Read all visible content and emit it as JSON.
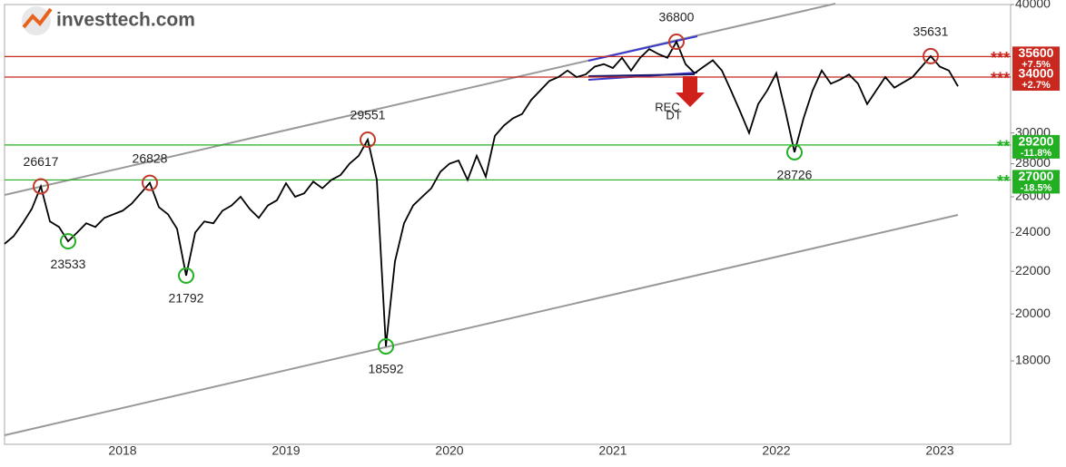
{
  "logo": "investtech.com",
  "chart_data": {
    "type": "line",
    "categories": [
      null,
      null,
      null,
      null,
      null,
      null,
      null,
      null,
      null,
      null,
      null,
      null,
      null,
      "2018",
      null,
      null,
      null,
      null,
      null,
      null,
      null,
      null,
      null,
      null,
      null,
      null,
      null,
      null,
      null,
      null,
      null,
      "2019",
      null,
      null,
      null,
      null,
      null,
      null,
      null,
      null,
      null,
      null,
      null,
      null,
      null,
      null,
      null,
      null,
      null,
      "2020",
      null,
      null,
      null,
      null,
      null,
      null,
      null,
      null,
      null,
      null,
      null,
      null,
      null,
      null,
      null,
      null,
      null,
      "2021",
      null,
      null,
      null,
      null,
      null,
      null,
      null,
      null,
      null,
      null,
      null,
      null,
      null,
      null,
      null,
      null,
      null,
      "2022",
      null,
      null,
      null,
      null,
      null,
      null,
      null,
      null,
      null,
      null,
      null,
      null,
      null,
      null,
      null,
      null,
      null,
      "2023",
      null,
      null
    ],
    "series": [
      {
        "color": "#000000",
        "values": [
          23400,
          23800,
          24500,
          25300,
          26617,
          24600,
          24300,
          23533,
          24000,
          24500,
          24300,
          24800,
          25000,
          25200,
          25600,
          26200,
          26828,
          25400,
          25000,
          24200,
          21792,
          24000,
          24600,
          24500,
          25200,
          25500,
          26000,
          25300,
          24800,
          25500,
          25800,
          26800,
          26000,
          26200,
          26900,
          26500,
          27000,
          27300,
          28000,
          28500,
          29551,
          27000,
          18592,
          22500,
          24500,
          25500,
          26000,
          26500,
          27500,
          28000,
          28200,
          27000,
          28500,
          27200,
          29800,
          30500,
          31000,
          31300,
          32300,
          33000,
          33700,
          34000,
          34500,
          34000,
          34200,
          34800,
          35000,
          34700,
          35500,
          34500,
          35500,
          36200,
          35800,
          35500,
          36800,
          35000,
          34300,
          34800,
          35300,
          34500,
          33000,
          31500,
          30000,
          32000,
          33000,
          34300,
          31500,
          28726,
          31000,
          33000,
          34500,
          33500,
          33800,
          34200,
          33500,
          32000,
          33000,
          34000,
          33200,
          33600,
          34000,
          34800,
          35631,
          34800,
          34500,
          33300
        ]
      }
    ],
    "log_scale": true,
    "ylim": [
      14930,
      40000
    ],
    "yticks": [
      40000,
      30000,
      28000,
      26000,
      24000,
      22000,
      20000,
      18000
    ],
    "highs": [
      26617,
      26828,
      29551,
      36800,
      35631
    ],
    "lows": [
      23533,
      21792,
      18592,
      28726
    ],
    "high_color": "#c0392b",
    "low_color": "#22b022",
    "levels": [
      {
        "value": 35600,
        "change": "+7.5%",
        "stars": "***",
        "color": "#c8281e"
      },
      {
        "value": 34000,
        "change": "+2.7%",
        "stars": "***",
        "color": "#c8281e"
      },
      {
        "value": 29200,
        "change": "-11.8%",
        "stars": "**",
        "color": "#22b022"
      },
      {
        "value": 27000,
        "change": "-18.5%",
        "stars": "**",
        "color": "#22b022"
      }
    ],
    "pattern_labels": [
      "REC",
      "DT"
    ]
  }
}
